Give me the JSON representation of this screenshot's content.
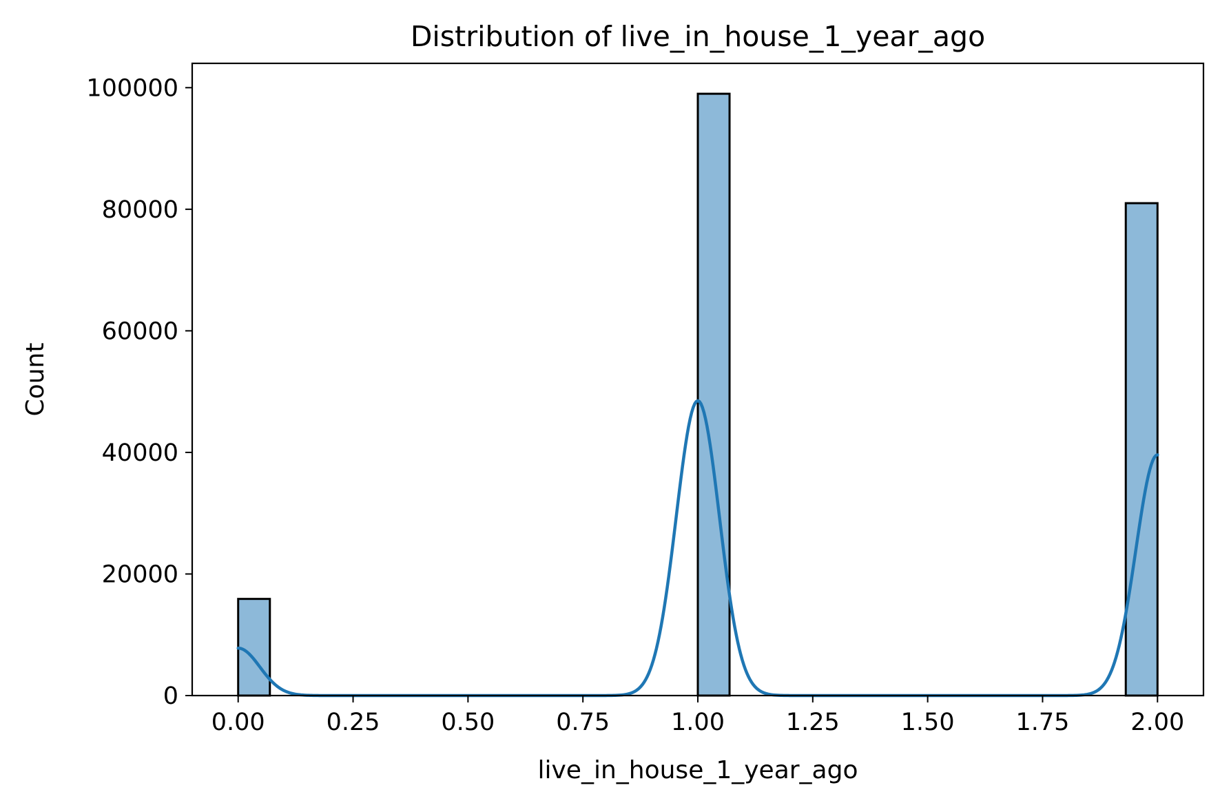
{
  "chart_data": {
    "type": "histogram",
    "title": "Distribution of live_in_house_1_year_ago",
    "xlabel": "live_in_house_1_year_ago",
    "ylabel": "Count",
    "xlim": [
      -0.1,
      2.1
    ],
    "ylim": [
      0,
      104000
    ],
    "xticks": [
      0.0,
      0.25,
      0.5,
      0.75,
      1.0,
      1.25,
      1.5,
      1.75,
      2.0
    ],
    "xtick_labels": [
      "0.00",
      "0.25",
      "0.50",
      "0.75",
      "1.00",
      "1.25",
      "1.50",
      "1.75",
      "2.00"
    ],
    "yticks": [
      0,
      20000,
      40000,
      60000,
      80000,
      100000
    ],
    "ytick_labels": [
      "0",
      "20000",
      "40000",
      "60000",
      "80000",
      "100000"
    ],
    "bin_width": 0.069,
    "bars": [
      {
        "bin_start": 0.0,
        "bin_end": 0.069,
        "count": 15900
      },
      {
        "bin_start": 1.0,
        "bin_end": 1.069,
        "count": 99000
      },
      {
        "bin_start": 1.931,
        "bin_end": 2.0,
        "count": 81000
      }
    ],
    "kde": {
      "curves": [
        {
          "x": 0.0,
          "y": 7800
        },
        {
          "x": 1.0,
          "y": 48500
        },
        {
          "x": 2.0,
          "y": 39600
        }
      ],
      "sigma": 0.047
    },
    "grid": false,
    "legend": "none",
    "colors": {
      "bar_fill": "#8db9d9",
      "bar_edge": "#000000",
      "kde_line": "#1f77b4"
    }
  }
}
